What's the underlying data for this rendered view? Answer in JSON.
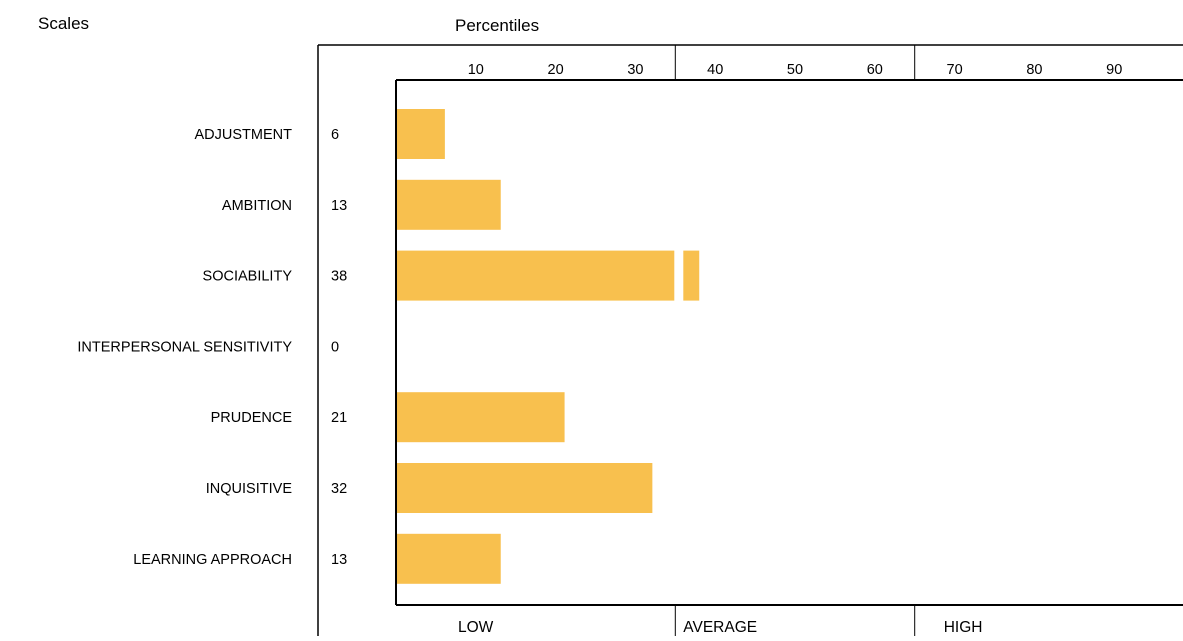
{
  "chart_data": {
    "type": "bar",
    "orientation": "horizontal",
    "left_heading": "Scales",
    "top_heading": "Percentiles",
    "categories": [
      "ADJUSTMENT",
      "AMBITION",
      "SOCIABILITY",
      "INTERPERSONAL SENSITIVITY",
      "PRUDENCE",
      "INQUISITIVE",
      "LEARNING APPROACH"
    ],
    "values": [
      6,
      13,
      38,
      0,
      21,
      32,
      13
    ],
    "xlim": [
      0,
      100
    ],
    "x_ticks": [
      10,
      20,
      30,
      40,
      50,
      60,
      70,
      80,
      90
    ],
    "band_dividers": [
      35,
      65
    ],
    "bands": [
      "LOW",
      "AVERAGE",
      "HIGH"
    ],
    "bar_color": "#F8C04E",
    "grid": false
  }
}
